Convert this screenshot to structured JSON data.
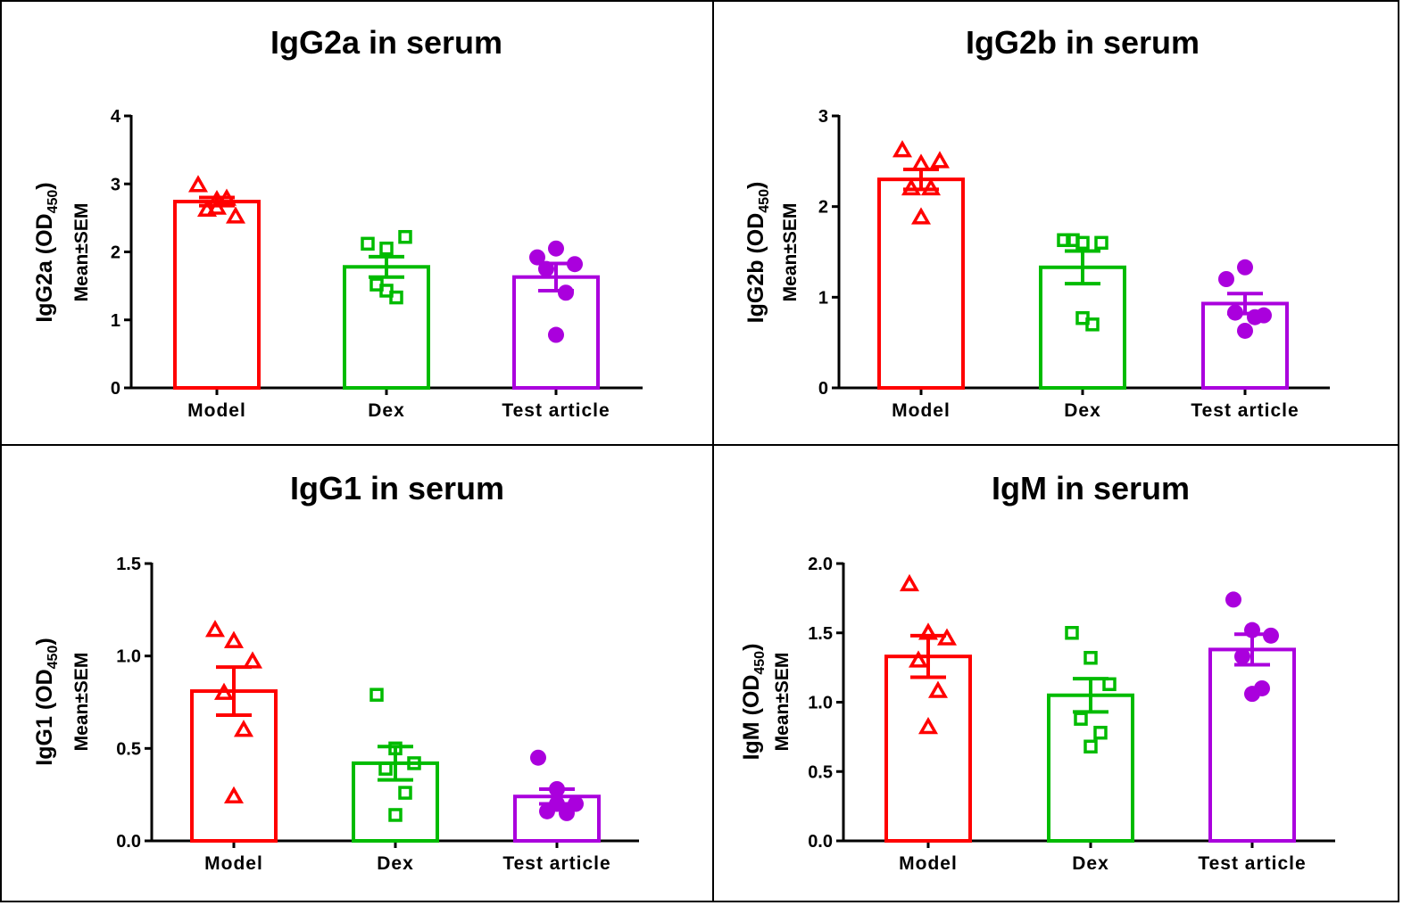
{
  "chart_data": [
    {
      "type": "bar",
      "title": "IgG2a in serum",
      "ylabel_main": "IgG2a (OD",
      "ylabel_sub": "450",
      "ylabel_close": ")",
      "ylabel2": "Mean±SEM",
      "ylim": [
        0,
        4
      ],
      "yticks": [
        0,
        1,
        2,
        3,
        4
      ],
      "ytick_labels": [
        "0",
        "1",
        "2",
        "3",
        "4"
      ],
      "categories": [
        "Model",
        "Dex",
        "Test article"
      ],
      "means": [
        2.74,
        1.78,
        1.63
      ],
      "sem": [
        0.06,
        0.15,
        0.2
      ],
      "points": [
        [
          2.98,
          2.65,
          2.52,
          2.62,
          2.78,
          2.76
        ],
        [
          2.12,
          2.05,
          2.22,
          1.52,
          1.33,
          1.43
        ],
        [
          1.92,
          2.05,
          1.82,
          1.75,
          1.4,
          0.78
        ]
      ]
    },
    {
      "type": "bar",
      "title": "IgG2b in serum",
      "ylabel_main": "IgG2b (OD",
      "ylabel_sub": "450",
      "ylabel_close": ")",
      "ylabel2": "Mean±SEM",
      "ylim": [
        0,
        3
      ],
      "yticks": [
        0,
        1,
        2,
        3
      ],
      "ytick_labels": [
        "0",
        "1",
        "2",
        "3"
      ],
      "categories": [
        "Model",
        "Dex",
        "Test article"
      ],
      "means": [
        2.3,
        1.33,
        0.93
      ],
      "sem": [
        0.11,
        0.18,
        0.11
      ],
      "points": [
        [
          2.62,
          2.47,
          2.5,
          2.2,
          2.2,
          1.88
        ],
        [
          1.63,
          1.6,
          1.6,
          1.63,
          0.7,
          0.77
        ],
        [
          1.2,
          1.33,
          0.8,
          0.83,
          0.78,
          0.63
        ]
      ]
    },
    {
      "type": "bar",
      "title": "IgG1 in serum",
      "ylabel_main": "IgG1 (OD",
      "ylabel_sub": "450",
      "ylabel_close": ")",
      "ylabel2": "Mean±SEM",
      "ylim": [
        0,
        1.5
      ],
      "yticks": [
        0,
        0.5,
        1.0,
        1.5
      ],
      "ytick_labels": [
        "0.0",
        "0.5",
        "1.0",
        "1.5"
      ],
      "categories": [
        "Model",
        "Dex",
        "Test article"
      ],
      "means": [
        0.81,
        0.42,
        0.24
      ],
      "sem": [
        0.13,
        0.09,
        0.04
      ],
      "points": [
        [
          1.14,
          1.08,
          0.97,
          0.8,
          0.6,
          0.24
        ],
        [
          0.79,
          0.5,
          0.42,
          0.39,
          0.26,
          0.14
        ],
        [
          0.45,
          0.28,
          0.2,
          0.16,
          0.15,
          0.2
        ]
      ]
    },
    {
      "type": "bar",
      "title": "IgM in serum",
      "ylabel_main": "IgM (OD",
      "ylabel_sub": "450",
      "ylabel_close": ")",
      "ylabel2": "Mean±SEM",
      "ylim": [
        0,
        2.0
      ],
      "yticks": [
        0,
        0.5,
        1.0,
        1.5,
        2.0
      ],
      "ytick_labels": [
        "0.0",
        "0.5",
        "1.0",
        "1.5",
        "2.0"
      ],
      "categories": [
        "Model",
        "Dex",
        "Test article"
      ],
      "means": [
        1.33,
        1.05,
        1.38
      ],
      "sem": [
        0.15,
        0.12,
        0.11
      ],
      "points": [
        [
          1.85,
          1.5,
          1.46,
          1.3,
          1.08,
          0.82
        ],
        [
          1.5,
          1.32,
          1.13,
          0.88,
          0.78,
          0.68
        ],
        [
          1.74,
          1.52,
          1.48,
          1.33,
          1.1,
          1.06
        ]
      ]
    }
  ],
  "group_colors": [
    "#ff0000",
    "#00bb00",
    "#aa00dd"
  ],
  "group_markers": [
    "triangle-open",
    "square-open",
    "circle-filled"
  ]
}
